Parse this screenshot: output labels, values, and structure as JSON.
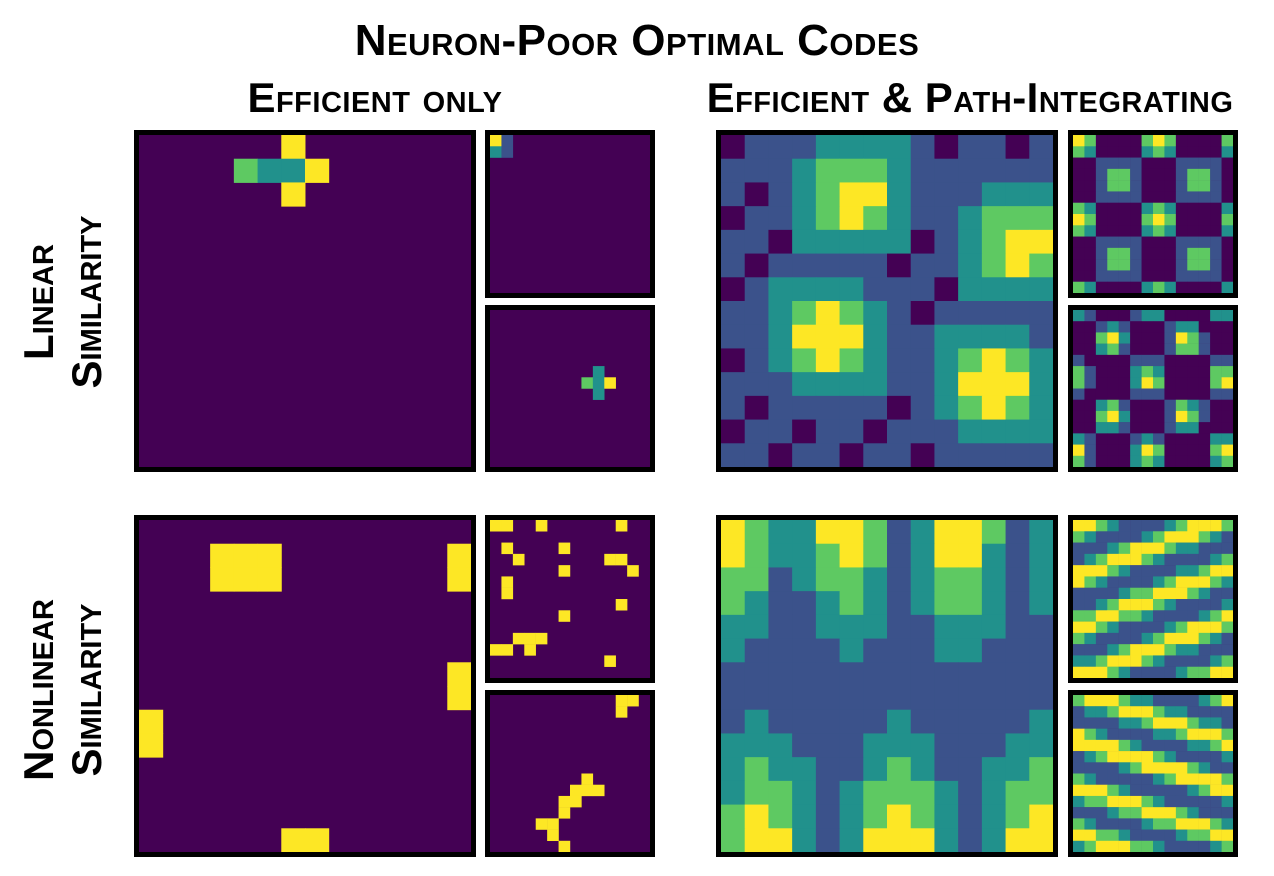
{
  "title": "Neuron-Poor Optimal Codes",
  "columns": [
    "Efficient only",
    "Efficient & Path-Integrating"
  ],
  "rows": [
    {
      "line1": "Linear",
      "line2": "Similarity"
    },
    {
      "line1": "Nonlinear",
      "line2": "Similarity"
    }
  ],
  "colormap": [
    "#440154",
    "#3b528b",
    "#21918c",
    "#5ec962",
    "#fde725"
  ]
}
